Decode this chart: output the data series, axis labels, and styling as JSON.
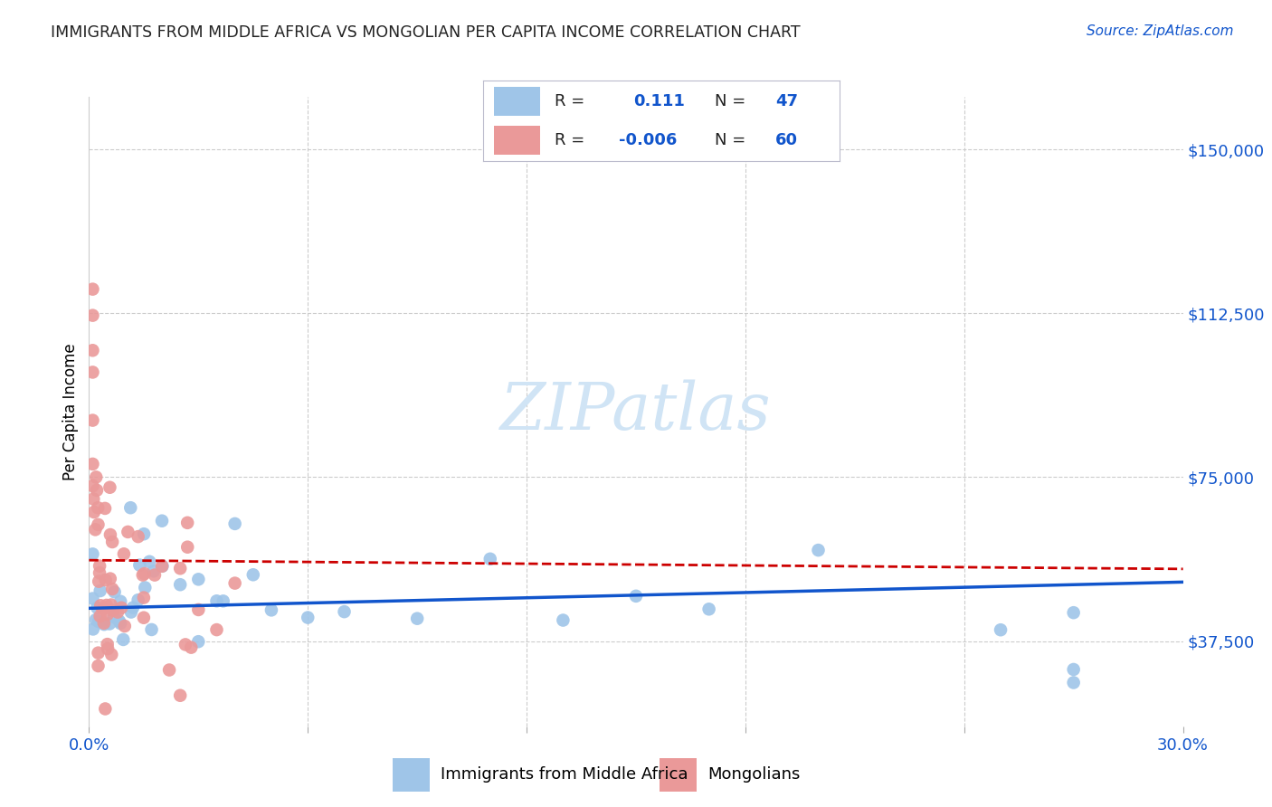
{
  "title": "IMMIGRANTS FROM MIDDLE AFRICA VS MONGOLIAN PER CAPITA INCOME CORRELATION CHART",
  "source": "Source: ZipAtlas.com",
  "ylabel": "Per Capita Income",
  "yticks": [
    37500,
    75000,
    112500,
    150000
  ],
  "ytick_labels": [
    "$37,500",
    "$75,000",
    "$112,500",
    "$150,000"
  ],
  "xlim": [
    0.0,
    0.3
  ],
  "ylim": [
    18000,
    162000
  ],
  "color_blue": "#9fc5e8",
  "color_pink": "#ea9999",
  "color_blue_dark": "#1155cc",
  "color_line_blue": "#1155cc",
  "color_line_pink": "#cc0000",
  "color_grid": "#cccccc",
  "watermark_color": "#d0e4f5",
  "legend_label1": "Immigrants from Middle Africa",
  "legend_label2": "Mongolians",
  "legend_border_color": "#aaaacc"
}
